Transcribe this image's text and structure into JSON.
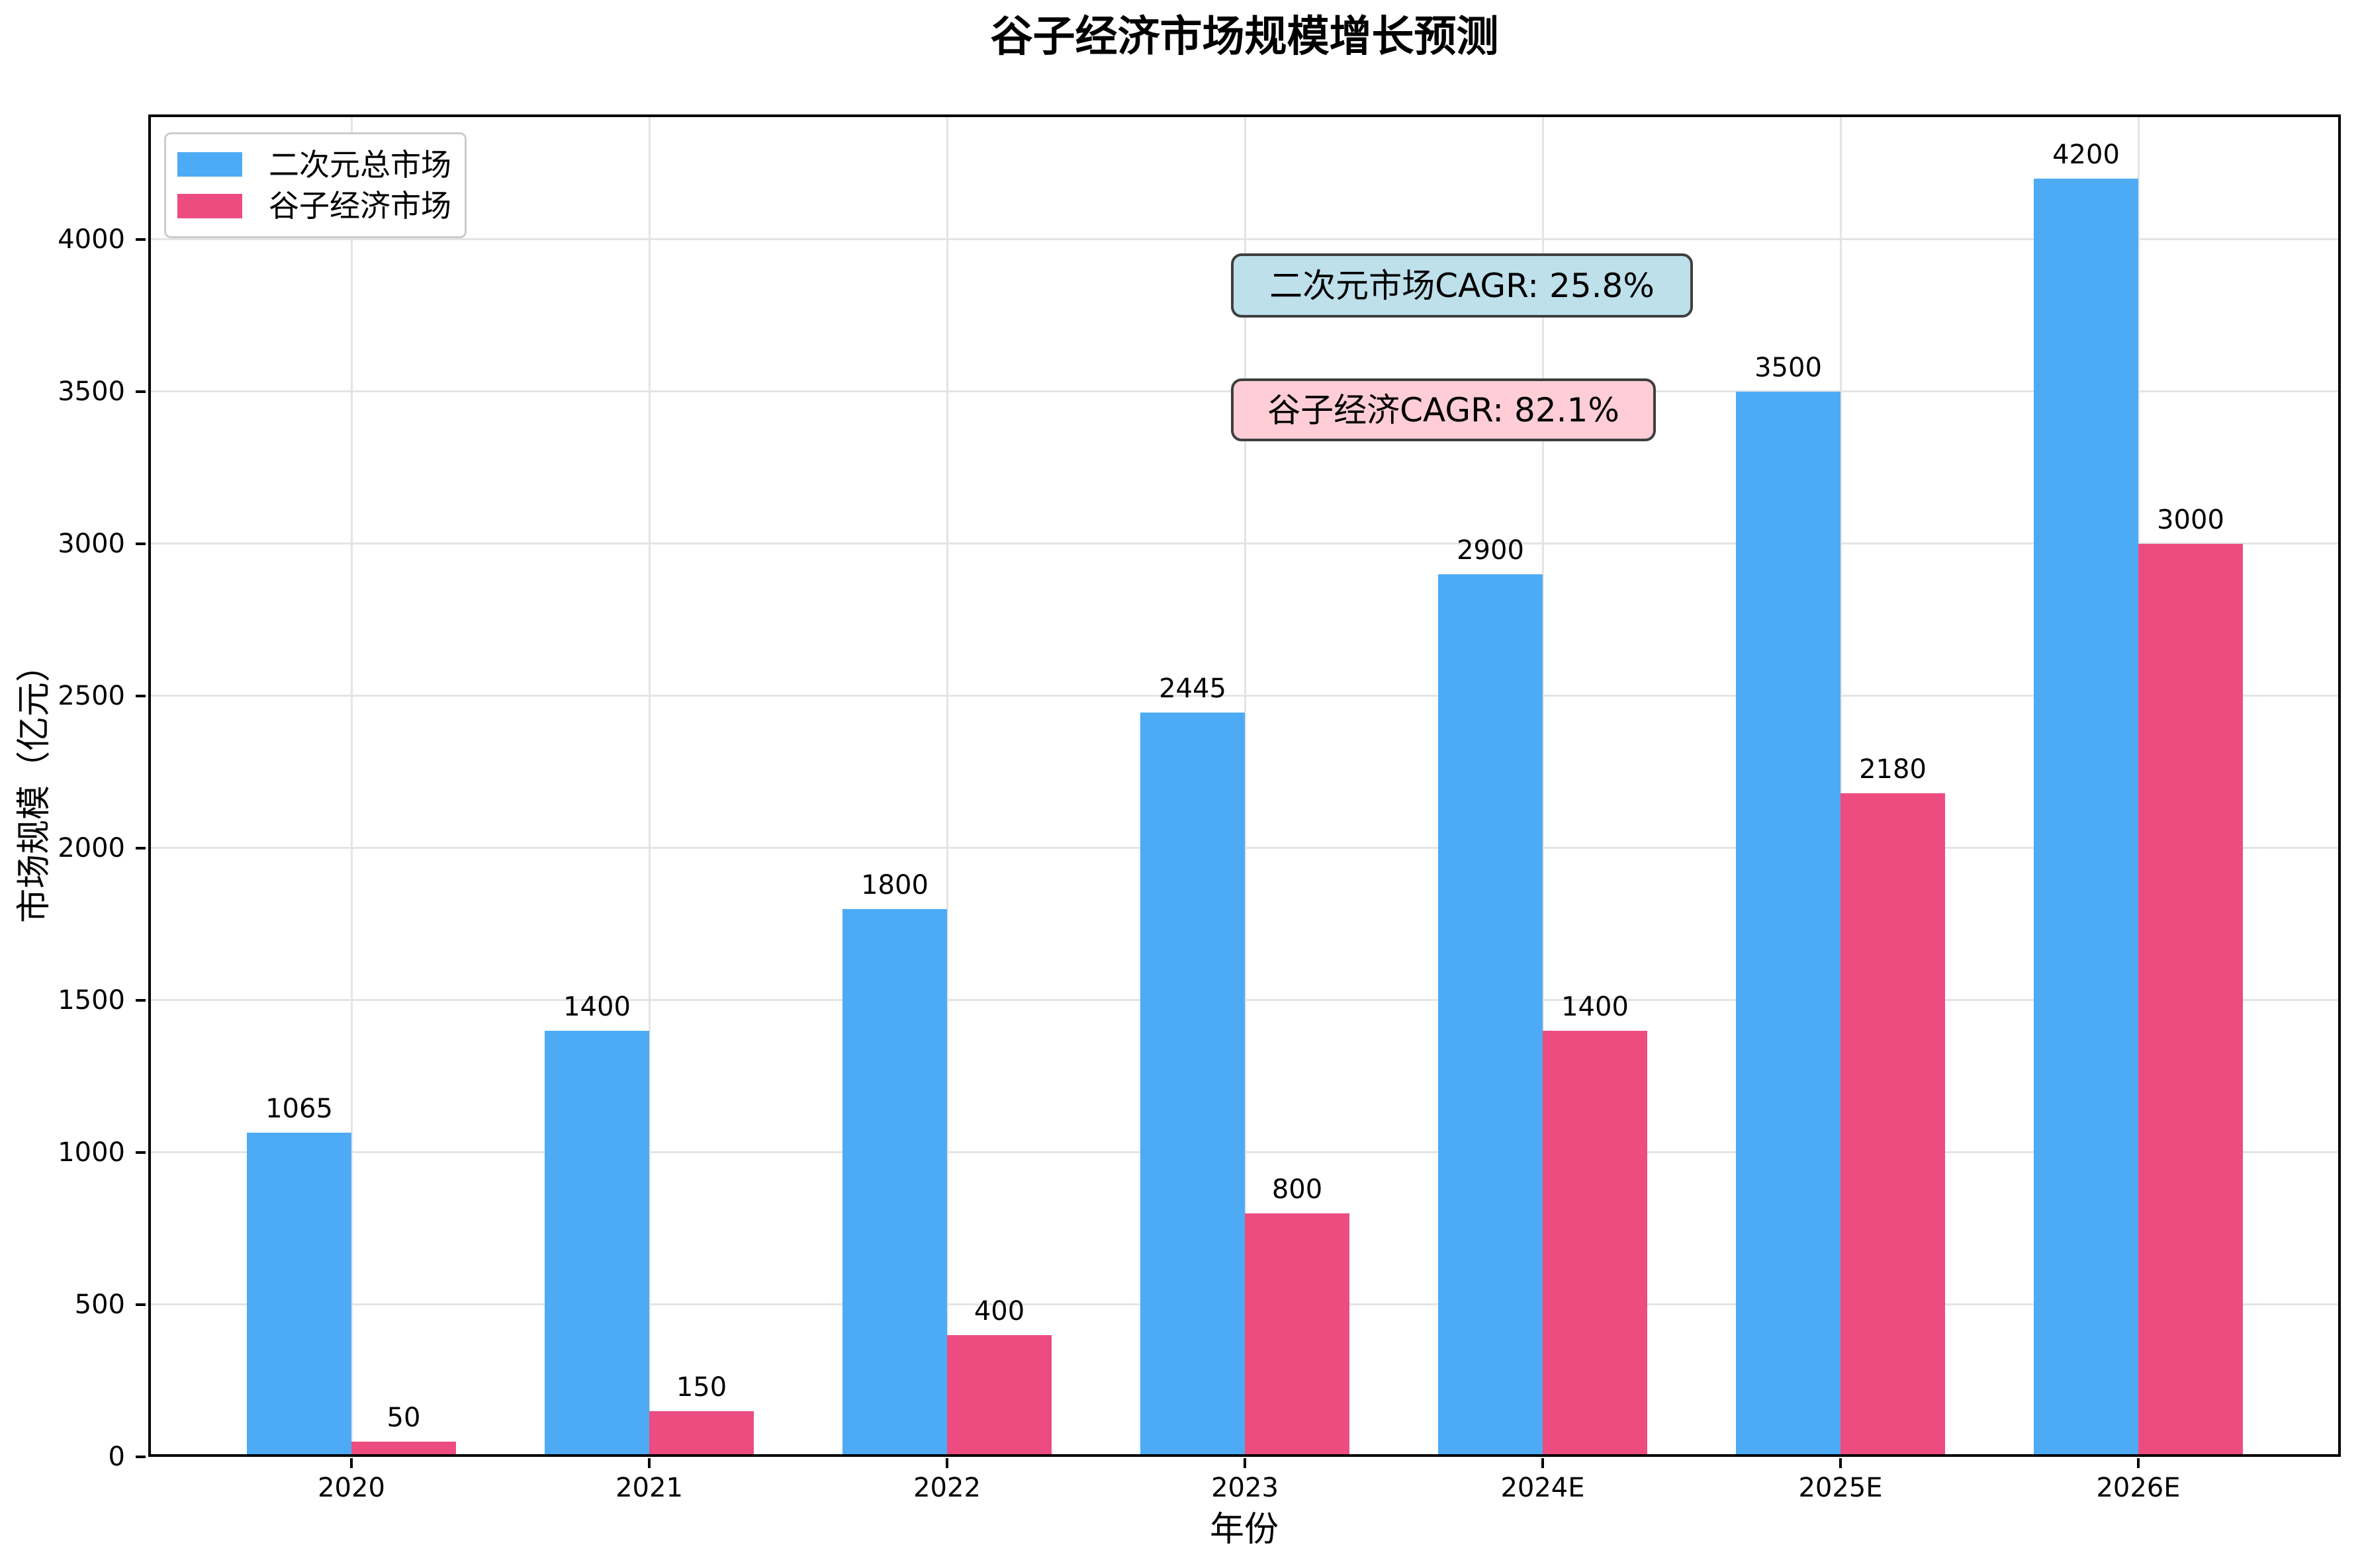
{
  "title": "谷子经济市场规模增长预测",
  "chart_data": {
    "type": "bar",
    "categories": [
      "2020",
      "2021",
      "2022",
      "2023",
      "2024E",
      "2025E",
      "2026E"
    ],
    "series": [
      {
        "name": "二次元总市场",
        "color": "#4DABF5",
        "values": [
          1065,
          1400,
          1800,
          2445,
          2900,
          3500,
          4200
        ]
      },
      {
        "name": "谷子经济市场",
        "color": "#ED4C80",
        "values": [
          50,
          150,
          400,
          800,
          1400,
          2180,
          3000
        ]
      }
    ],
    "title": "谷子经济市场规模增长预测",
    "xlabel": "年份",
    "ylabel": "市场规模（亿元）",
    "ylim": [
      0,
      4410
    ],
    "yticks": [
      0,
      500,
      1000,
      1500,
      2000,
      2500,
      3000,
      3500,
      4000
    ],
    "grid": true,
    "grid_color": "#e4e4e4",
    "legend_position": "upper left",
    "annotations": [
      {
        "text": "二次元市场CAGR: 25.8%",
        "bg": "#BDE0EB",
        "border": "#3f3f3f"
      },
      {
        "text": "谷子经济CAGR: 82.1%",
        "bg": "#FFCDD6",
        "border": "#3f3f3f"
      }
    ]
  }
}
